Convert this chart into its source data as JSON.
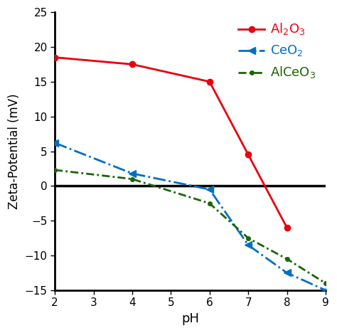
{
  "Al2O3_pH": [
    2,
    4,
    6,
    7,
    8
  ],
  "Al2O3_vals": [
    18.5,
    17.5,
    15.0,
    4.5,
    -6.0
  ],
  "CeO2_pH": [
    2,
    4,
    6,
    7,
    8,
    9
  ],
  "CeO2_vals": [
    6.2,
    1.8,
    -0.5,
    -8.5,
    -12.5,
    -15.0
  ],
  "AlCeO3_pH": [
    2,
    4,
    6,
    7,
    8,
    9
  ],
  "AlCeO3_vals": [
    2.3,
    1.0,
    -2.5,
    -7.5,
    -10.5,
    -14.0
  ],
  "Al2O3_color": "#e8000d",
  "CeO2_color": "#0070c0",
  "AlCeO3_color": "#1a6600",
  "xlabel": "pH",
  "ylabel": "Zeta-Potential (mV)",
  "xlim": [
    2,
    9
  ],
  "ylim": [
    -15,
    25
  ],
  "yticks": [
    -15,
    -10,
    -5,
    0,
    5,
    10,
    15,
    20,
    25
  ],
  "xticks": [
    2,
    3,
    4,
    5,
    6,
    7,
    8,
    9
  ],
  "legend_Al2O3": "Al$_2$O$_3$",
  "legend_CeO2": "CeO$_2$",
  "legend_AlCeO3": "AlCeO$_3$"
}
